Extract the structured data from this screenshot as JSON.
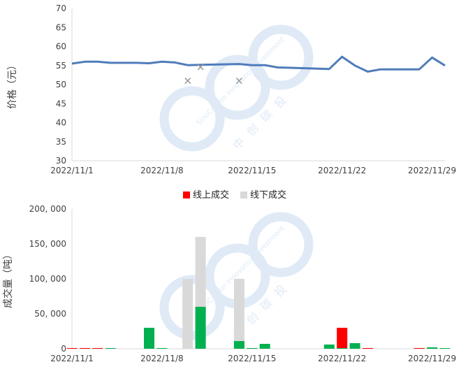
{
  "colors": {
    "price_line": "#4f7cba",
    "offline_marker": "#9a9a9a",
    "online_bar": "#ff0000",
    "offline_bar": "#d9d9d9",
    "green_bar": "#00b050",
    "watermark": "#dfeaf6",
    "axis": "#d9d9d9"
  },
  "watermark": {
    "text_en": "SinoCarbon Innovation Investment",
    "text_cn": "中创碳投"
  },
  "chart_data": [
    {
      "type": "line",
      "ylabel": "价格（元）",
      "ylim": [
        30,
        70
      ],
      "yticks": [
        "30",
        "35",
        "40",
        "45",
        "50",
        "55",
        "60",
        "65",
        "70"
      ],
      "xlim": [
        "2022/11/1",
        "2022/11/30"
      ],
      "xtick_labels": [
        "2022/11/1",
        "2022/11/8",
        "2022/11/15",
        "2022/11/22",
        "2022/11/29"
      ],
      "series": [
        {
          "kind": "line",
          "x": [
            "2022/11/1",
            "2022/11/2",
            "2022/11/3",
            "2022/11/4",
            "2022/11/5",
            "2022/11/6",
            "2022/11/7",
            "2022/11/8",
            "2022/11/9",
            "2022/11/10",
            "2022/11/11",
            "2022/11/14",
            "2022/11/15",
            "2022/11/16",
            "2022/11/17",
            "2022/11/18",
            "2022/11/21",
            "2022/11/22",
            "2022/11/23",
            "2022/11/24",
            "2022/11/25",
            "2022/11/26",
            "2022/11/27",
            "2022/11/28",
            "2022/11/29",
            "2022/11/30"
          ],
          "y": [
            55.5,
            56.0,
            56.0,
            55.7,
            55.7,
            55.7,
            55.6,
            56.0,
            55.8,
            55.1,
            55.2,
            55.4,
            55.1,
            55.1,
            54.5,
            54.4,
            54.1,
            57.3,
            55.0,
            53.4,
            54.0,
            54.0,
            54.0,
            54.0,
            57.1,
            55.0
          ]
        },
        {
          "kind": "scatter",
          "x": [
            "2022/11/10",
            "2022/11/11",
            "2022/11/14"
          ],
          "y": [
            51.0,
            54.6,
            51.0
          ]
        }
      ]
    },
    {
      "type": "bar",
      "ylabel": "成交量（吨）",
      "ylim": [
        0,
        200000
      ],
      "yticks": [
        "0",
        "50, 000",
        "100, 000",
        "150, 000",
        "200, 000"
      ],
      "xlim": [
        "2022/11/1",
        "2022/11/30"
      ],
      "xtick_labels": [
        "2022/11/1",
        "2022/11/8",
        "2022/11/15",
        "2022/11/22",
        "2022/11/29"
      ],
      "legend": {
        "position": "top",
        "items": [
          "线上成交",
          "线下成交"
        ]
      },
      "series": [
        {
          "name": "线上成交",
          "x": [
            "2022/11/1",
            "2022/11/2",
            "2022/11/3",
            "2022/11/8",
            "2022/11/15",
            "2022/11/22",
            "2022/11/24",
            "2022/11/28",
            "2022/11/29"
          ],
          "y": [
            1000,
            1000,
            1000,
            1000,
            1000,
            30000,
            1000,
            1000,
            1000
          ]
        },
        {
          "name": "线下成交",
          "x": [
            "2022/11/10",
            "2022/11/11",
            "2022/11/14"
          ],
          "y": [
            100000,
            160000,
            100000
          ]
        },
        {
          "x": [
            "2022/11/4",
            "2022/11/7",
            "2022/11/8",
            "2022/11/11",
            "2022/11/14",
            "2022/11/15",
            "2022/11/16",
            "2022/11/21",
            "2022/11/22",
            "2022/11/23",
            "2022/11/29",
            "2022/11/30"
          ],
          "y": [
            1000,
            30000,
            1000,
            60000,
            11000,
            1000,
            7000,
            6000,
            1000,
            8000,
            2000,
            1000
          ]
        }
      ]
    }
  ]
}
